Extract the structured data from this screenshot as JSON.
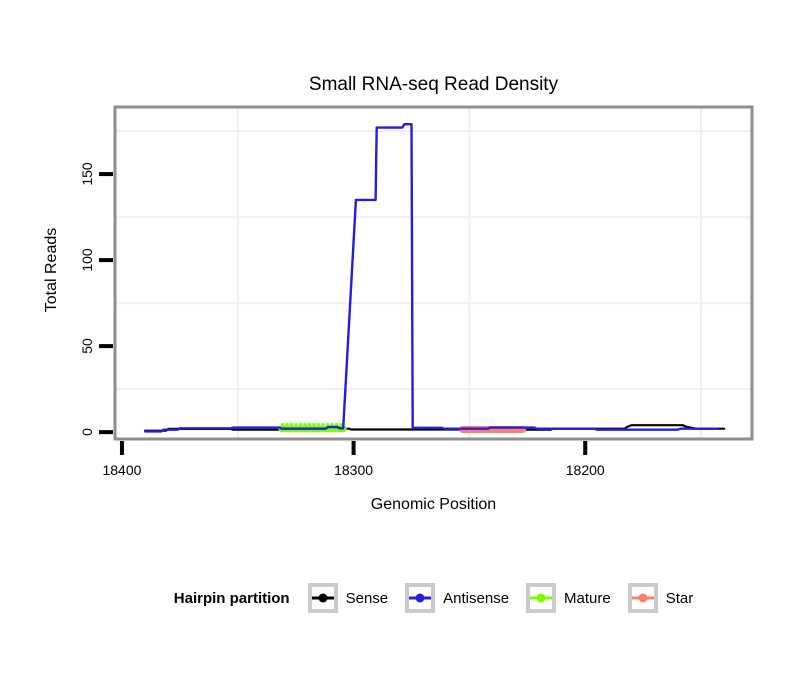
{
  "title": "Small RNA-seq Read Density",
  "axes": {
    "x": {
      "label": "Genomic Position"
    },
    "y": {
      "label": "Total Reads"
    }
  },
  "legend": {
    "title": "Hairpin partition"
  },
  "colors": {
    "frame": "#8e8e8e",
    "grid": "#f0f0f0",
    "tick": "#000000",
    "background": "#ffffff",
    "legend_key_border": "#cbcbcb"
  },
  "chart_data": {
    "type": "line",
    "title": "Small RNA-seq Read Density",
    "xlabel": "Genomic Position",
    "ylabel": "Total Reads",
    "x_decreasing": true,
    "xlim": [
      18403,
      18128
    ],
    "ylim": [
      -4,
      189
    ],
    "grid_on": true,
    "legend_position": "bottom",
    "xticks": [
      {
        "value": 18400,
        "label": "18400"
      },
      {
        "value": 18300,
        "label": "18300"
      },
      {
        "value": 18200,
        "label": "18200"
      }
    ],
    "yticks": [
      {
        "value": 0,
        "label": "0"
      },
      {
        "value": 50,
        "label": "50"
      },
      {
        "value": 100,
        "label": "100"
      },
      {
        "value": 150,
        "label": "150"
      }
    ],
    "grid_x": [
      18350,
      18250,
      18150
    ],
    "grid_y": [
      25,
      75,
      125,
      175
    ],
    "series": [
      {
        "name": "Sense",
        "color": "#000000",
        "width": 2.2,
        "z": 1,
        "stippled": false,
        "points": [
          [
            18390,
            0.8
          ],
          [
            18381,
            0.8
          ],
          [
            18380,
            1.9
          ],
          [
            18353,
            1.9
          ],
          [
            18352,
            1.4
          ],
          [
            18331,
            1.4
          ],
          [
            18330,
            2
          ],
          [
            18302,
            2
          ],
          [
            18301,
            1.5
          ],
          [
            18253,
            1.5
          ],
          [
            18252,
            1.8
          ],
          [
            18228,
            1.8
          ],
          [
            18227,
            1.4
          ],
          [
            18215,
            1.4
          ],
          [
            18214,
            2
          ],
          [
            18183,
            2
          ],
          [
            18182,
            3
          ],
          [
            18180,
            4
          ],
          [
            18158,
            4
          ],
          [
            18156,
            3
          ],
          [
            18152,
            2
          ],
          [
            18140,
            2
          ]
        ]
      },
      {
        "name": "Antisense",
        "color": "#2020dd",
        "width": 2.4,
        "z": 4,
        "stippled": false,
        "points": [
          [
            18390,
            0.4
          ],
          [
            18383,
            0.4
          ],
          [
            18382,
            1.4
          ],
          [
            18376,
            1.4
          ],
          [
            18375,
            2.2
          ],
          [
            18353,
            2.2
          ],
          [
            18352,
            2.6
          ],
          [
            18332,
            2.6
          ],
          [
            18331,
            2
          ],
          [
            18312,
            2
          ],
          [
            18311,
            3
          ],
          [
            18307,
            3
          ],
          [
            18306,
            2.2
          ],
          [
            18304.5,
            2.2
          ],
          [
            18299,
            135
          ],
          [
            18290.5,
            135
          ],
          [
            18290,
            177
          ],
          [
            18279,
            177
          ],
          [
            18278,
            179
          ],
          [
            18275,
            179
          ],
          [
            18274.5,
            2.5
          ],
          [
            18262,
            2.5
          ],
          [
            18261,
            2
          ],
          [
            18242,
            2
          ],
          [
            18241,
            2.6
          ],
          [
            18222,
            2.6
          ],
          [
            18221,
            2
          ],
          [
            18196,
            2
          ],
          [
            18195,
            1.4
          ],
          [
            18160,
            1.4
          ],
          [
            18159,
            2
          ],
          [
            18143,
            2
          ]
        ]
      },
      {
        "name": "Mature",
        "color": "#7cfc00",
        "width": 7,
        "z": 2,
        "stippled": true,
        "points": [
          [
            18331,
            2
          ],
          [
            18304.5,
            2
          ]
        ]
      },
      {
        "name": "Star",
        "color": "#fa8072",
        "width": 7,
        "z": 3,
        "stippled": false,
        "points": [
          [
            18253,
            1.5
          ],
          [
            18227,
            1.5
          ]
        ]
      }
    ]
  }
}
